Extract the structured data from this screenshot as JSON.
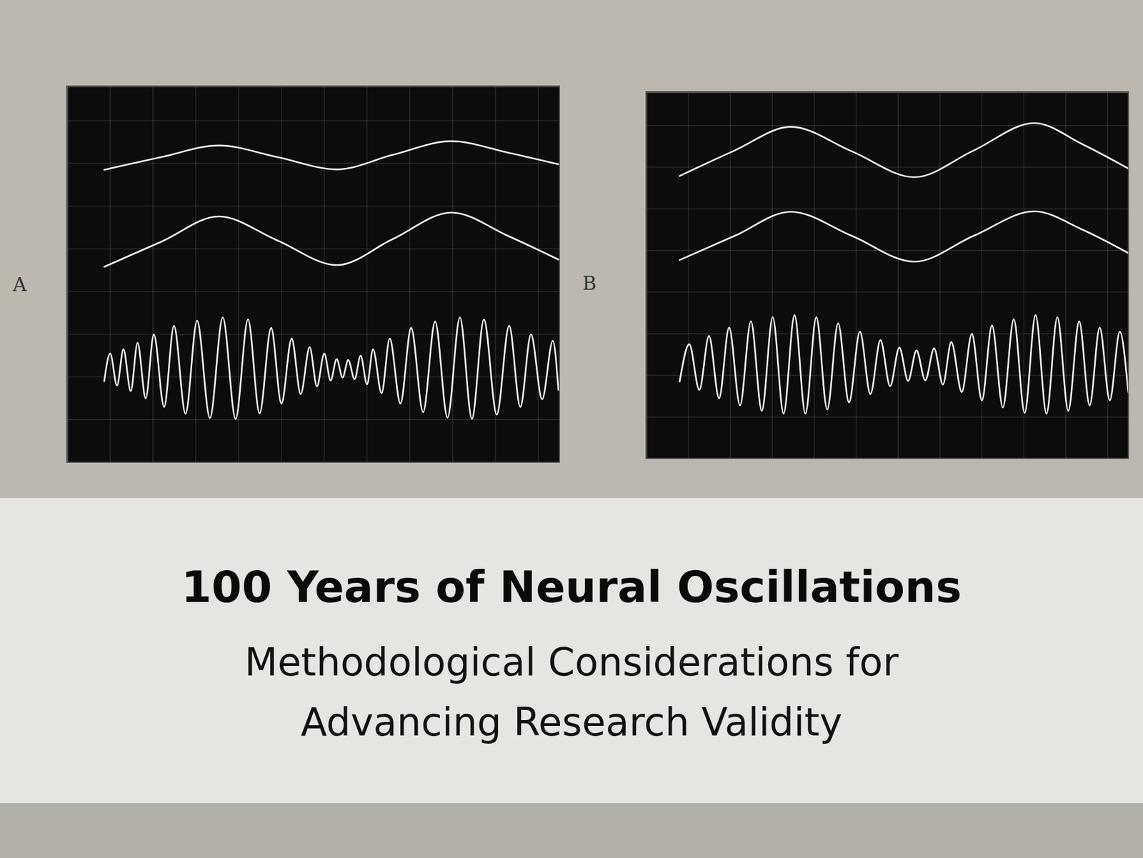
{
  "title": "100 Years of Neural Oscillations",
  "subtitle": "Methodological Considerations for Advancing Research Validity",
  "chart_data": [
    {
      "type": "line",
      "panel": "A",
      "grid": true,
      "tick_labels": false,
      "xlim": [
        -1,
        10.5
      ],
      "ylim": [
        0,
        8.8
      ],
      "xticks": [
        0,
        1,
        2,
        3,
        4,
        5,
        6,
        7,
        8,
        9,
        10
      ],
      "yticks": [
        1,
        2,
        3,
        4,
        5,
        6,
        7,
        8
      ],
      "series": [
        {
          "color": "#efefef",
          "x": [
            -0.14,
            1.2,
            2.54,
            3.9,
            5.3,
            6.6,
            7.97,
            9.3,
            10.47
          ],
          "values": [
            6.85,
            7.15,
            7.42,
            7.15,
            6.86,
            7.2,
            7.52,
            7.25,
            6.98
          ]
        },
        {
          "color": "#efefef",
          "x": [
            -0.14,
            1.2,
            2.54,
            3.9,
            5.3,
            6.6,
            7.97,
            9.3,
            10.47
          ],
          "values": [
            4.58,
            5.17,
            5.76,
            5.2,
            4.62,
            5.23,
            5.85,
            5.3,
            4.75
          ]
        },
        {
          "color": "#efefef",
          "x": [
            -0.14,
            0.0,
            0.16,
            0.31,
            0.48,
            0.64,
            0.83,
            1.02,
            1.26,
            1.49,
            1.76,
            2.03,
            2.33,
            2.63,
            2.93,
            3.22,
            3.49,
            3.76,
            4.0,
            4.24,
            4.45,
            4.66,
            4.83,
            5.0,
            5.15,
            5.29,
            5.43,
            5.56,
            5.71,
            5.85,
            6.0,
            6.14,
            6.34,
            6.53,
            6.78,
            7.03,
            7.31,
            7.59,
            7.88,
            8.17,
            8.45,
            8.73,
            9.03,
            9.32,
            9.58,
            9.83,
            10.09,
            10.34,
            10.47
          ],
          "values": [
            1.9,
            2.55,
            1.8,
            2.65,
            1.67,
            2.8,
            1.5,
            3.0,
            1.3,
            3.2,
            1.14,
            3.32,
            1.04,
            3.4,
            1.02,
            3.35,
            1.15,
            3.15,
            1.38,
            2.9,
            1.6,
            2.7,
            1.78,
            2.55,
            1.92,
            2.42,
            1.99,
            2.4,
            1.95,
            2.5,
            1.83,
            2.65,
            1.62,
            2.9,
            1.38,
            3.15,
            1.18,
            3.3,
            1.05,
            3.4,
            1.02,
            3.35,
            1.12,
            3.2,
            1.3,
            3.0,
            1.48,
            2.85,
            1.7
          ]
        }
      ]
    },
    {
      "type": "line",
      "panel": "B",
      "grid": true,
      "tick_labels": false,
      "xlim": [
        -1,
        10.5
      ],
      "ylim": [
        0,
        8.8
      ],
      "xticks": [
        0,
        1,
        2,
        3,
        4,
        5,
        6,
        7,
        8,
        9,
        10
      ],
      "yticks": [
        1,
        2,
        3,
        4,
        5,
        6,
        7,
        8
      ],
      "series": [
        {
          "color": "#efefef",
          "x": [
            -0.21,
            1.1,
            2.44,
            3.9,
            5.39,
            6.8,
            8.25,
            9.4,
            10.49
          ],
          "values": [
            6.79,
            7.4,
            7.97,
            7.38,
            6.76,
            7.4,
            8.06,
            7.55,
            6.97
          ]
        },
        {
          "color": "#efefef",
          "x": [
            -0.21,
            1.1,
            2.44,
            3.9,
            5.39,
            6.8,
            8.25,
            9.4,
            10.49
          ],
          "values": [
            4.77,
            5.35,
            5.93,
            5.35,
            4.73,
            5.35,
            5.94,
            5.5,
            4.94
          ]
        },
        {
          "color": "#efefef",
          "x": [
            -0.21,
            0.02,
            0.26,
            0.49,
            0.73,
            0.97,
            1.23,
            1.49,
            1.75,
            2.01,
            2.27,
            2.53,
            2.79,
            3.05,
            3.31,
            3.57,
            3.83,
            4.09,
            4.34,
            4.58,
            4.81,
            5.03,
            5.24,
            5.44,
            5.65,
            5.86,
            6.07,
            6.27,
            6.52,
            6.76,
            7.0,
            7.24,
            7.5,
            7.76,
            8.02,
            8.28,
            8.54,
            8.8,
            9.06,
            9.32,
            9.57,
            9.81,
            10.05,
            10.29,
            10.49
          ],
          "values": [
            1.85,
            2.75,
            1.65,
            2.95,
            1.45,
            3.15,
            1.28,
            3.3,
            1.15,
            3.4,
            1.08,
            3.45,
            1.08,
            3.4,
            1.18,
            3.25,
            1.35,
            3.05,
            1.55,
            2.85,
            1.74,
            2.67,
            1.87,
            2.6,
            1.88,
            2.65,
            1.78,
            2.8,
            1.6,
            3.0,
            1.4,
            3.2,
            1.23,
            3.35,
            1.1,
            3.45,
            1.08,
            3.4,
            1.15,
            3.3,
            1.28,
            3.15,
            1.4,
            3.05,
            1.6
          ]
        }
      ]
    }
  ]
}
